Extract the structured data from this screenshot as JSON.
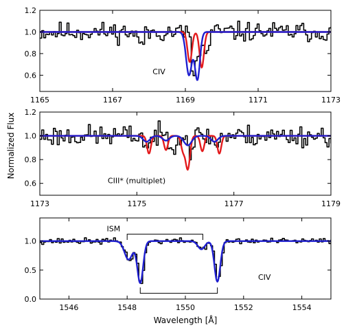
{
  "figure": {
    "ylabel": "Normalized Flux",
    "xlabel": "Wavelength [Å]"
  },
  "chart_data": [
    {
      "type": "line",
      "xlim": [
        1165,
        1173
      ],
      "ylim": [
        0.45,
        1.2
      ],
      "xticks": [
        1165,
        1167,
        1169,
        1171,
        1173
      ],
      "yticks": [
        0.6,
        0.8,
        1.0,
        1.2
      ],
      "xtick_labels": [
        "1165",
        "1167",
        "1169",
        "1171",
        "1173"
      ],
      "ytick_labels": [
        "0.6",
        "0.8",
        "1.0",
        "1.2"
      ],
      "annotations": [
        {
          "text": "CIV",
          "x": 1168.1,
          "y": 0.61
        }
      ],
      "series": [
        {
          "color": "#000000",
          "style": "step",
          "noise": 0.045,
          "seed": 11,
          "continuum": 1.0,
          "lines": [
            {
              "c": 1169.2,
              "d": 0.4,
              "s": 0.06
            },
            {
              "c": 1169.55,
              "d": 0.22,
              "s": 0.07
            },
            {
              "c": 1167.75,
              "d": 0.1,
              "s": 0.1
            },
            {
              "c": 1169.35,
              "d": 0.2,
              "s": 0.06
            }
          ]
        },
        {
          "color": "#e31a1c",
          "style": "smooth",
          "lines": [
            {
              "c": 1169.12,
              "d": 0.28,
              "s": 0.06
            },
            {
              "c": 1169.45,
              "d": 0.33,
              "s": 0.06
            }
          ]
        },
        {
          "color": "#1f1fd0",
          "style": "smooth",
          "lines": [
            {
              "c": 1169.1,
              "d": 0.4,
              "s": 0.08
            },
            {
              "c": 1169.33,
              "d": 0.44,
              "s": 0.07
            }
          ]
        }
      ]
    },
    {
      "type": "line",
      "xlim": [
        1173,
        1179
      ],
      "ylim": [
        0.5,
        1.2
      ],
      "xticks": [
        1173,
        1175,
        1177,
        1179
      ],
      "yticks": [
        0.6,
        0.8,
        1.0,
        1.2
      ],
      "xtick_labels": [
        "1173",
        "1175",
        "1177",
        "1179"
      ],
      "ytick_labels": [
        "0.6",
        "0.8",
        "1.0",
        "1.2"
      ],
      "annotations": [
        {
          "text": "CIII* (multiplet)",
          "x": 1174.4,
          "y": 0.6
        }
      ],
      "series": [
        {
          "color": "#000000",
          "style": "step",
          "noise": 0.045,
          "seed": 23,
          "continuum": 1.0,
          "lines": [
            {
              "c": 1175.2,
              "d": 0.1,
              "s": 0.05
            },
            {
              "c": 1175.7,
              "d": 0.08,
              "s": 0.05
            },
            {
              "c": 1176.1,
              "d": 0.12,
              "s": 0.05
            },
            {
              "c": 1176.6,
              "d": 0.08,
              "s": 0.05
            }
          ]
        },
        {
          "color": "#e31a1c",
          "style": "smooth",
          "lines": [
            {
              "c": 1175.25,
              "d": 0.15,
              "s": 0.04
            },
            {
              "c": 1175.6,
              "d": 0.12,
              "s": 0.04
            },
            {
              "c": 1175.95,
              "d": 0.12,
              "s": 0.04
            },
            {
              "c": 1176.05,
              "d": 0.28,
              "s": 0.045
            },
            {
              "c": 1176.35,
              "d": 0.13,
              "s": 0.04
            },
            {
              "c": 1176.7,
              "d": 0.15,
              "s": 0.04
            }
          ]
        },
        {
          "color": "#1f1fd0",
          "style": "smooth",
          "lines": [
            {
              "c": 1175.2,
              "d": 0.05,
              "s": 0.07
            },
            {
              "c": 1175.6,
              "d": 0.04,
              "s": 0.07
            },
            {
              "c": 1176.05,
              "d": 0.08,
              "s": 0.08
            },
            {
              "c": 1176.6,
              "d": 0.05,
              "s": 0.07
            }
          ]
        }
      ]
    },
    {
      "type": "line",
      "xlim": [
        1545,
        1555
      ],
      "ylim": [
        0.0,
        1.4
      ],
      "xticks": [
        1546,
        1548,
        1550,
        1552,
        1554
      ],
      "yticks": [
        0.0,
        0.5,
        1.0
      ],
      "xtick_labels": [
        "1546",
        "1548",
        "1550",
        "1552",
        "1554"
      ],
      "ytick_labels": [
        "0.0",
        "0.5",
        "1.0"
      ],
      "annotations": [
        {
          "text": "ISM",
          "x": 1547.3,
          "y": 1.17
        },
        {
          "text": "CIV",
          "x": 1552.5,
          "y": 0.33
        }
      ],
      "brackets": [
        {
          "x1": 1548.0,
          "x2": 1550.6,
          "y": 1.12,
          "tick_dir": "down",
          "tick_len": 0.1
        },
        {
          "x1": 1548.45,
          "x2": 1551.1,
          "y": 0.1,
          "tick_dir": "up",
          "tick_len": 0.1
        }
      ],
      "series": [
        {
          "color": "#000000",
          "style": "step",
          "noise": 0.025,
          "seed": 37,
          "continuum": 1.0,
          "lines": [
            {
              "c": 1548.05,
              "d": 0.32,
              "s": 0.14
            },
            {
              "c": 1548.45,
              "d": 0.72,
              "s": 0.1
            },
            {
              "c": 1550.55,
              "d": 0.14,
              "s": 0.12
            },
            {
              "c": 1551.1,
              "d": 0.7,
              "s": 0.1
            }
          ]
        },
        {
          "color": "#1f1fd0",
          "style": "smooth",
          "lines": [
            {
              "c": 1548.05,
              "d": 0.32,
              "s": 0.14
            },
            {
              "c": 1548.45,
              "d": 0.72,
              "s": 0.1
            },
            {
              "c": 1550.55,
              "d": 0.14,
              "s": 0.12
            },
            {
              "c": 1551.1,
              "d": 0.7,
              "s": 0.1
            }
          ]
        }
      ]
    }
  ]
}
